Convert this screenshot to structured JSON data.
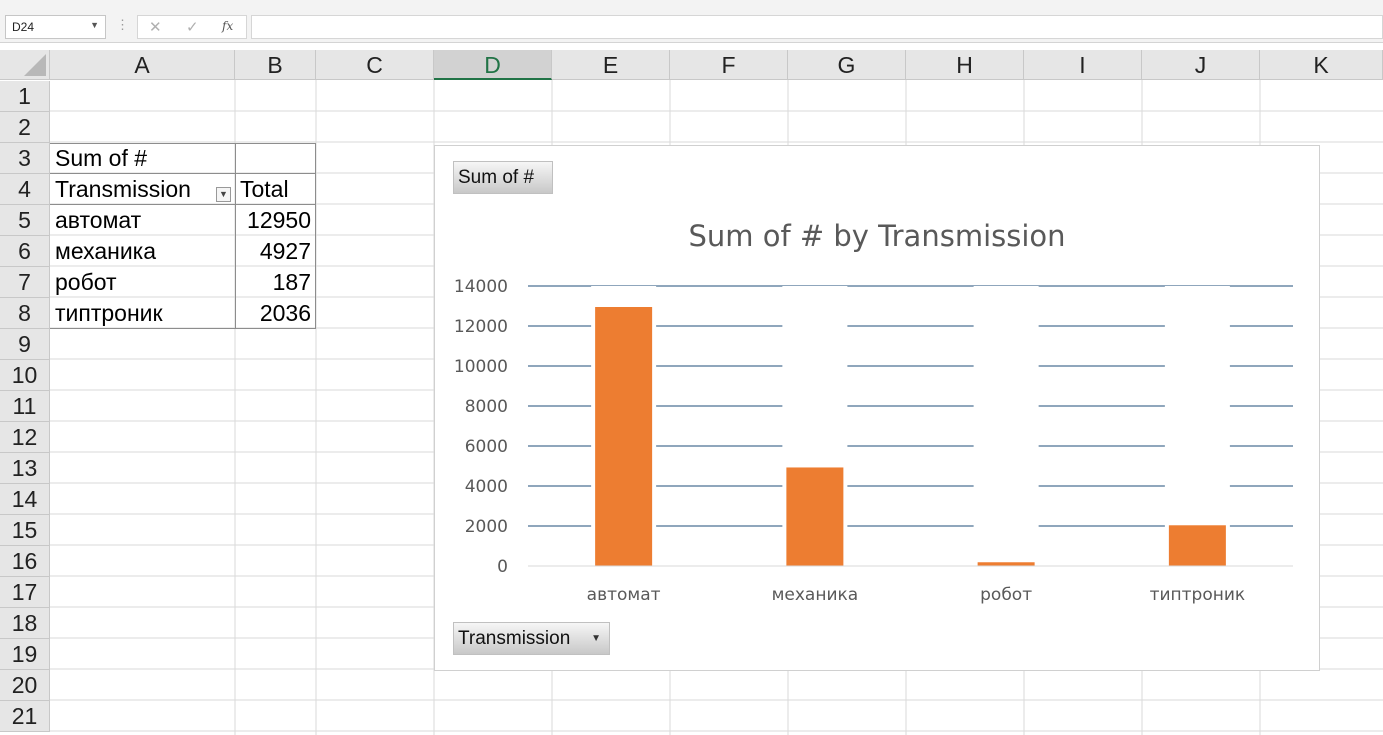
{
  "formula_bar": {
    "name_box": "D24",
    "cancel_glyph": "✕",
    "enter_glyph": "✓",
    "fx_label": "fx",
    "separator_glyph": "⋮",
    "formula": ""
  },
  "sheet": {
    "columns": [
      "A",
      "B",
      "C",
      "D",
      "E",
      "F",
      "G",
      "H",
      "I",
      "J",
      "K"
    ],
    "selected_column": "D",
    "rows": [
      "1",
      "2",
      "3",
      "4",
      "5",
      "6",
      "7",
      "8",
      "9",
      "10",
      "11",
      "12",
      "13",
      "14",
      "15",
      "16",
      "17",
      "18",
      "19",
      "20",
      "21"
    ]
  },
  "pivot_table": {
    "header": "Sum of #",
    "row_label": "Transmission",
    "value_header": "Total",
    "rows": [
      {
        "label": "автомат",
        "value": "12950"
      },
      {
        "label": "механика",
        "value": "4927"
      },
      {
        "label": "робот",
        "value": "187"
      },
      {
        "label": "типтроник",
        "value": "2036"
      }
    ]
  },
  "pivot_chart": {
    "value_field_button": "Sum of #",
    "axis_field_button": "Transmission",
    "bar_color": "#ed7d31",
    "gridline_color": "#1f4e79"
  },
  "chart_data": {
    "type": "bar",
    "title": "Sum of # by Transmission",
    "categories": [
      "автомат",
      "механика",
      "робот",
      "типтроник"
    ],
    "values": [
      12950,
      4927,
      187,
      2036
    ],
    "ylim": [
      0,
      14000
    ],
    "yticks": [
      "0",
      "2000",
      "4000",
      "6000",
      "8000",
      "10000",
      "12000",
      "14000"
    ],
    "xlabel": "",
    "ylabel": "",
    "legend": "none",
    "grid": true
  }
}
